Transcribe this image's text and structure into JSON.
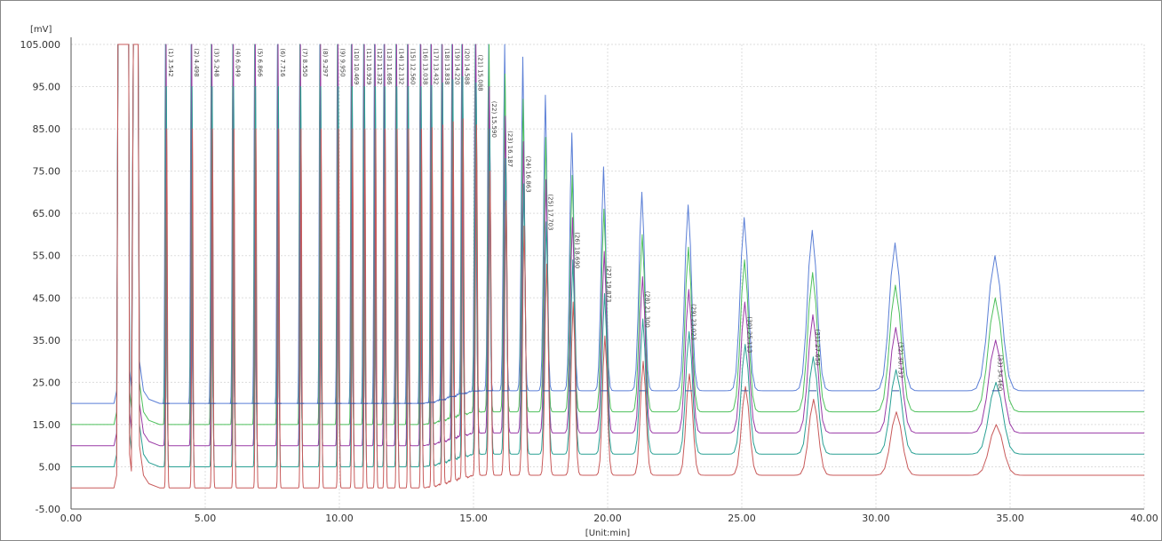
{
  "chart_data": {
    "type": "line",
    "ylabel": "[mV]",
    "xlabel": "[Unit:min]",
    "xlim": [
      0,
      40
    ],
    "ylim": [
      -5,
      105
    ],
    "x_ticks": [
      0,
      5,
      10,
      15,
      20,
      25,
      30,
      35,
      40
    ],
    "x_tick_labels": [
      "0.00",
      "5.00",
      "10.00",
      "15.00",
      "20.00",
      "25.00",
      "30.00",
      "35.00",
      "40.00"
    ],
    "y_ticks": [
      105,
      95,
      85,
      75,
      65,
      55,
      45,
      35,
      25,
      15,
      5,
      -5
    ],
    "y_tick_labels": [
      "105.000",
      "95.00",
      "85.00",
      "75.00",
      "65.00",
      "55.00",
      "45.00",
      "35.00",
      "25.00",
      "15.00",
      "5.00",
      "-5.00"
    ],
    "grid": true,
    "colors": {
      "blue": "#5b7fd6",
      "green": "#4ec05c",
      "purple": "#9a3aa6",
      "teal": "#2aa094",
      "red": "#c85a5a",
      "grid": "#dddddd",
      "axis": "#555555"
    },
    "series_traces": [
      {
        "color_key": "blue",
        "baseline_start": 20,
        "baseline_end": 23
      },
      {
        "color_key": "green",
        "baseline_start": 15,
        "baseline_end": 18
      },
      {
        "color_key": "purple",
        "baseline_start": 10,
        "baseline_end": 13
      },
      {
        "color_key": "teal",
        "baseline_start": 5,
        "baseline_end": 8
      },
      {
        "color_key": "red",
        "baseline_start": 0,
        "baseline_end": 3
      }
    ],
    "peaks": [
      {
        "x": 3.542,
        "height": 105,
        "label": "(1) 3.542"
      },
      {
        "x": 4.498,
        "height": 105,
        "label": "(2) 4.498"
      },
      {
        "x": 5.248,
        "height": 105,
        "label": "(3) 5.248"
      },
      {
        "x": 6.049,
        "height": 105,
        "label": "(4) 6.049"
      },
      {
        "x": 6.866,
        "height": 105,
        "label": "(5) 6.866"
      },
      {
        "x": 7.716,
        "height": 105,
        "label": "(6) 7.716"
      },
      {
        "x": 8.55,
        "height": 105,
        "label": "(7) 8.550"
      },
      {
        "x": 9.297,
        "height": 105,
        "label": "(8) 9.297"
      },
      {
        "x": 9.95,
        "height": 105,
        "label": "(9) 9.950"
      },
      {
        "x": 10.469,
        "height": 105,
        "label": "(10) 10.469"
      },
      {
        "x": 10.929,
        "height": 105,
        "label": "(11) 10.929"
      },
      {
        "x": 11.332,
        "height": 105,
        "label": "(12) 11.332"
      },
      {
        "x": 11.686,
        "height": 105,
        "label": "(13) 11.686"
      },
      {
        "x": 12.132,
        "height": 105,
        "label": "(14) 12.132"
      },
      {
        "x": 12.56,
        "height": 105,
        "label": "(15) 12.560"
      },
      {
        "x": 13.038,
        "height": 105,
        "label": "(16) 13.038"
      },
      {
        "x": 13.432,
        "height": 105,
        "label": "(17) 13.432"
      },
      {
        "x": 13.838,
        "height": 105,
        "label": "(18) 13.838"
      },
      {
        "x": 14.22,
        "height": 105,
        "label": "(19) 14.220"
      },
      {
        "x": 14.588,
        "height": 105,
        "label": "(20) 14.588"
      },
      {
        "x": 15.088,
        "height": 103,
        "label": "(21) 15.088"
      },
      {
        "x": 15.59,
        "height": 92,
        "label": "(22) 15.590"
      },
      {
        "x": 16.187,
        "height": 85,
        "label": "(23) 16.187"
      },
      {
        "x": 16.863,
        "height": 79,
        "label": "(24) 16.863"
      },
      {
        "x": 17.703,
        "height": 70,
        "label": "(25) 17.703"
      },
      {
        "x": 18.69,
        "height": 61,
        "label": "(26) 18.690"
      },
      {
        "x": 19.873,
        "height": 53,
        "label": "(27) 19.873"
      },
      {
        "x": 21.3,
        "height": 47,
        "label": "(28) 21.300"
      },
      {
        "x": 23.023,
        "height": 44,
        "label": "(29) 23.023"
      },
      {
        "x": 25.113,
        "height": 41,
        "label": "(30) 25.113"
      },
      {
        "x": 27.65,
        "height": 38,
        "label": "(31) 27.650"
      },
      {
        "x": 30.737,
        "height": 35,
        "label": "(32) 30.737"
      },
      {
        "x": 34.46,
        "height": 32,
        "label": "(33) 34.460"
      }
    ]
  }
}
